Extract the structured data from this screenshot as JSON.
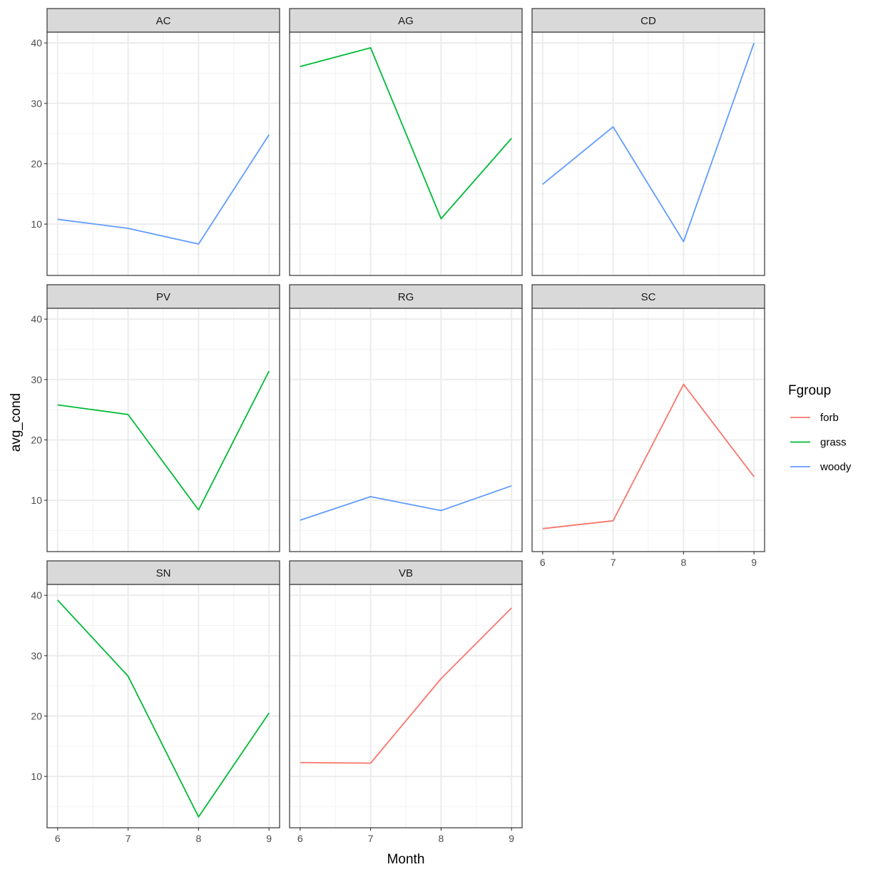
{
  "chart_data": {
    "type": "line",
    "layout": "facet_wrap",
    "xlabel": "Month",
    "ylabel": "avg_cond",
    "x": [
      6,
      7,
      8,
      9
    ],
    "xlim": [
      5.85,
      9.15
    ],
    "ylim": [
      1.5,
      41.8
    ],
    "x_ticks": [
      6,
      7,
      8,
      9
    ],
    "y_ticks": [
      10,
      20,
      30,
      40
    ],
    "grid": true,
    "legend": {
      "title": "Fgroup",
      "position": "right",
      "entries": [
        {
          "label": "forb",
          "color": "#F8766D"
        },
        {
          "label": "grass",
          "color": "#00BA38"
        },
        {
          "label": "woody",
          "color": "#619CFF"
        }
      ]
    },
    "panels": [
      {
        "label": "AC",
        "group": "woody",
        "values": [
          10.8,
          9.3,
          6.7,
          24.8
        ]
      },
      {
        "label": "AG",
        "group": "grass",
        "values": [
          36.1,
          39.2,
          10.9,
          24.2
        ]
      },
      {
        "label": "CD",
        "group": "woody",
        "values": [
          16.6,
          26.1,
          7.1,
          40.0
        ]
      },
      {
        "label": "PV",
        "group": "grass",
        "values": [
          25.8,
          24.2,
          8.4,
          31.4
        ]
      },
      {
        "label": "RG",
        "group": "woody",
        "values": [
          6.7,
          10.6,
          8.3,
          12.4
        ]
      },
      {
        "label": "SC",
        "group": "forb",
        "values": [
          5.3,
          6.6,
          29.2,
          13.9
        ]
      },
      {
        "label": "SN",
        "group": "grass",
        "values": [
          39.2,
          26.6,
          3.3,
          20.5
        ]
      },
      {
        "label": "VB",
        "group": "forb",
        "values": [
          12.3,
          12.2,
          26.2,
          37.9
        ]
      }
    ]
  }
}
